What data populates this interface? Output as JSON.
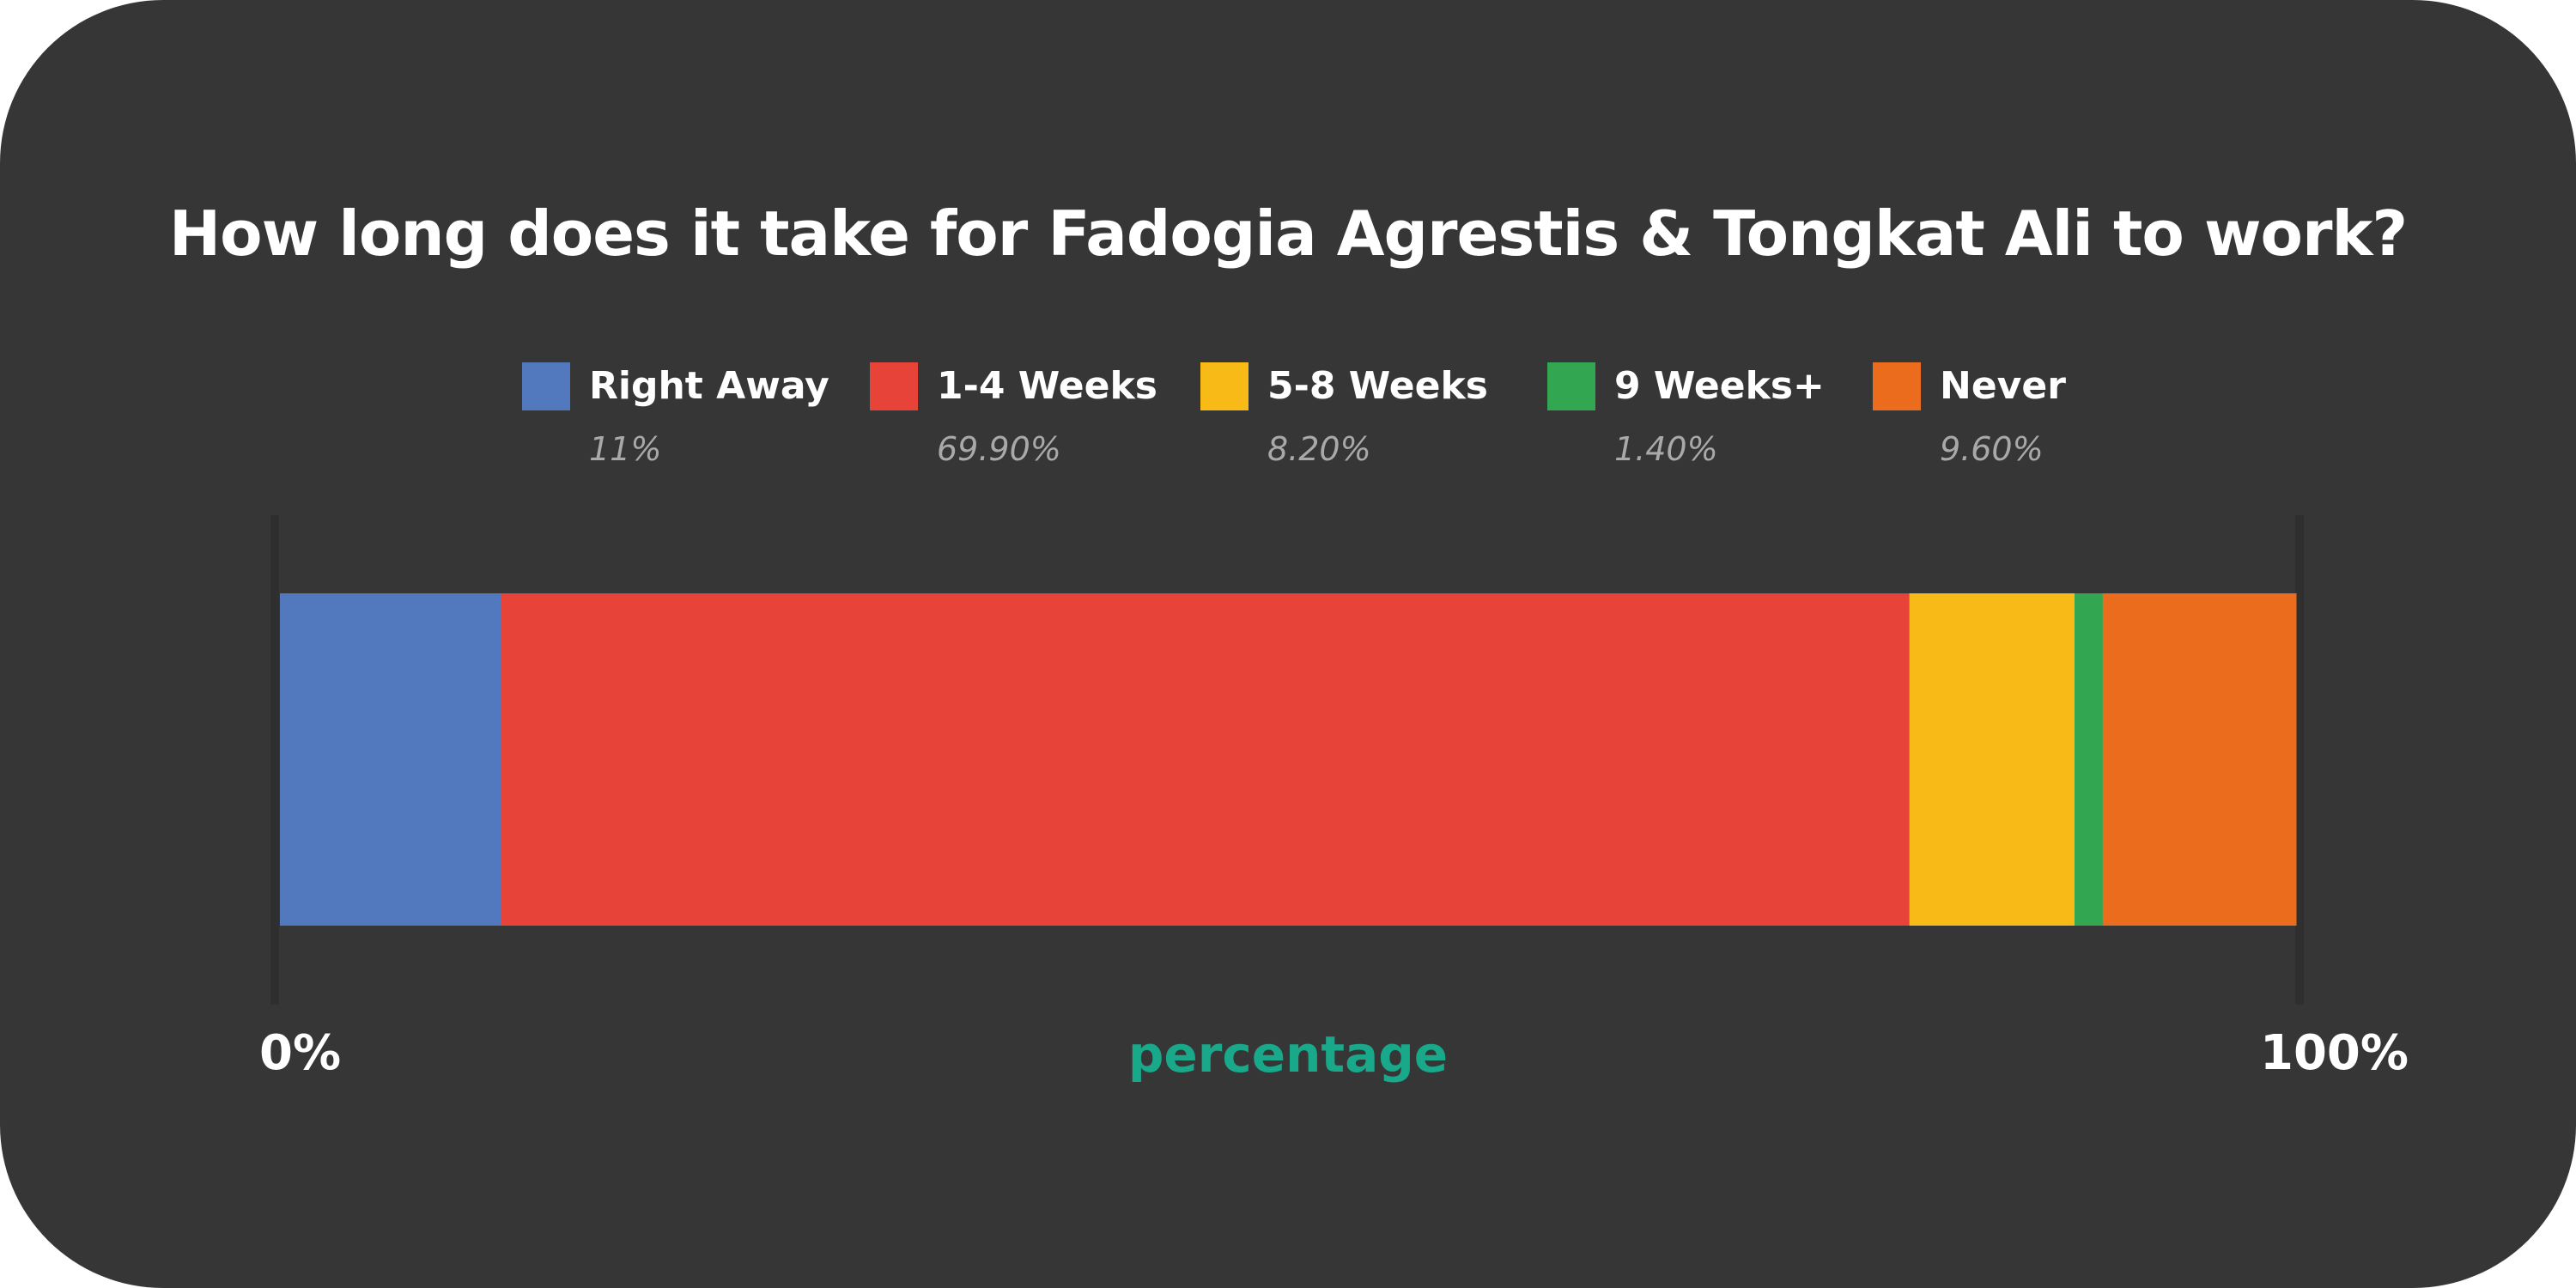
{
  "chart_data": {
    "type": "bar",
    "orientation": "horizontal",
    "stacked": true,
    "title": "How long does it take for Fadogia Agrestis & Tongkat Ali to work?",
    "xlabel": "percentage",
    "ylabel": "",
    "xlim": [
      0,
      100
    ],
    "tick_labels": [
      "0%",
      "100%"
    ],
    "legend_position": "top",
    "grid": false,
    "series": [
      {
        "name": "Right Away",
        "value": 11,
        "display": "11%",
        "color": "#5279be"
      },
      {
        "name": "1-4 Weeks",
        "value": 69.9,
        "display": "69.90%",
        "color": "#e84338"
      },
      {
        "name": "5-8 Weeks",
        "value": 8.2,
        "display": "8.20%",
        "color": "#f8ba17"
      },
      {
        "name": "9 Weeks+",
        "value": 1.4,
        "display": "1.40%",
        "color": "#33a652"
      },
      {
        "name": "Never",
        "value": 9.6,
        "display": "9.60%",
        "color": "#ea6c1c"
      }
    ]
  },
  "colors": {
    "background": "#363636",
    "axis_line": "#2f2f2f",
    "xlabel": "#1aa88a"
  }
}
